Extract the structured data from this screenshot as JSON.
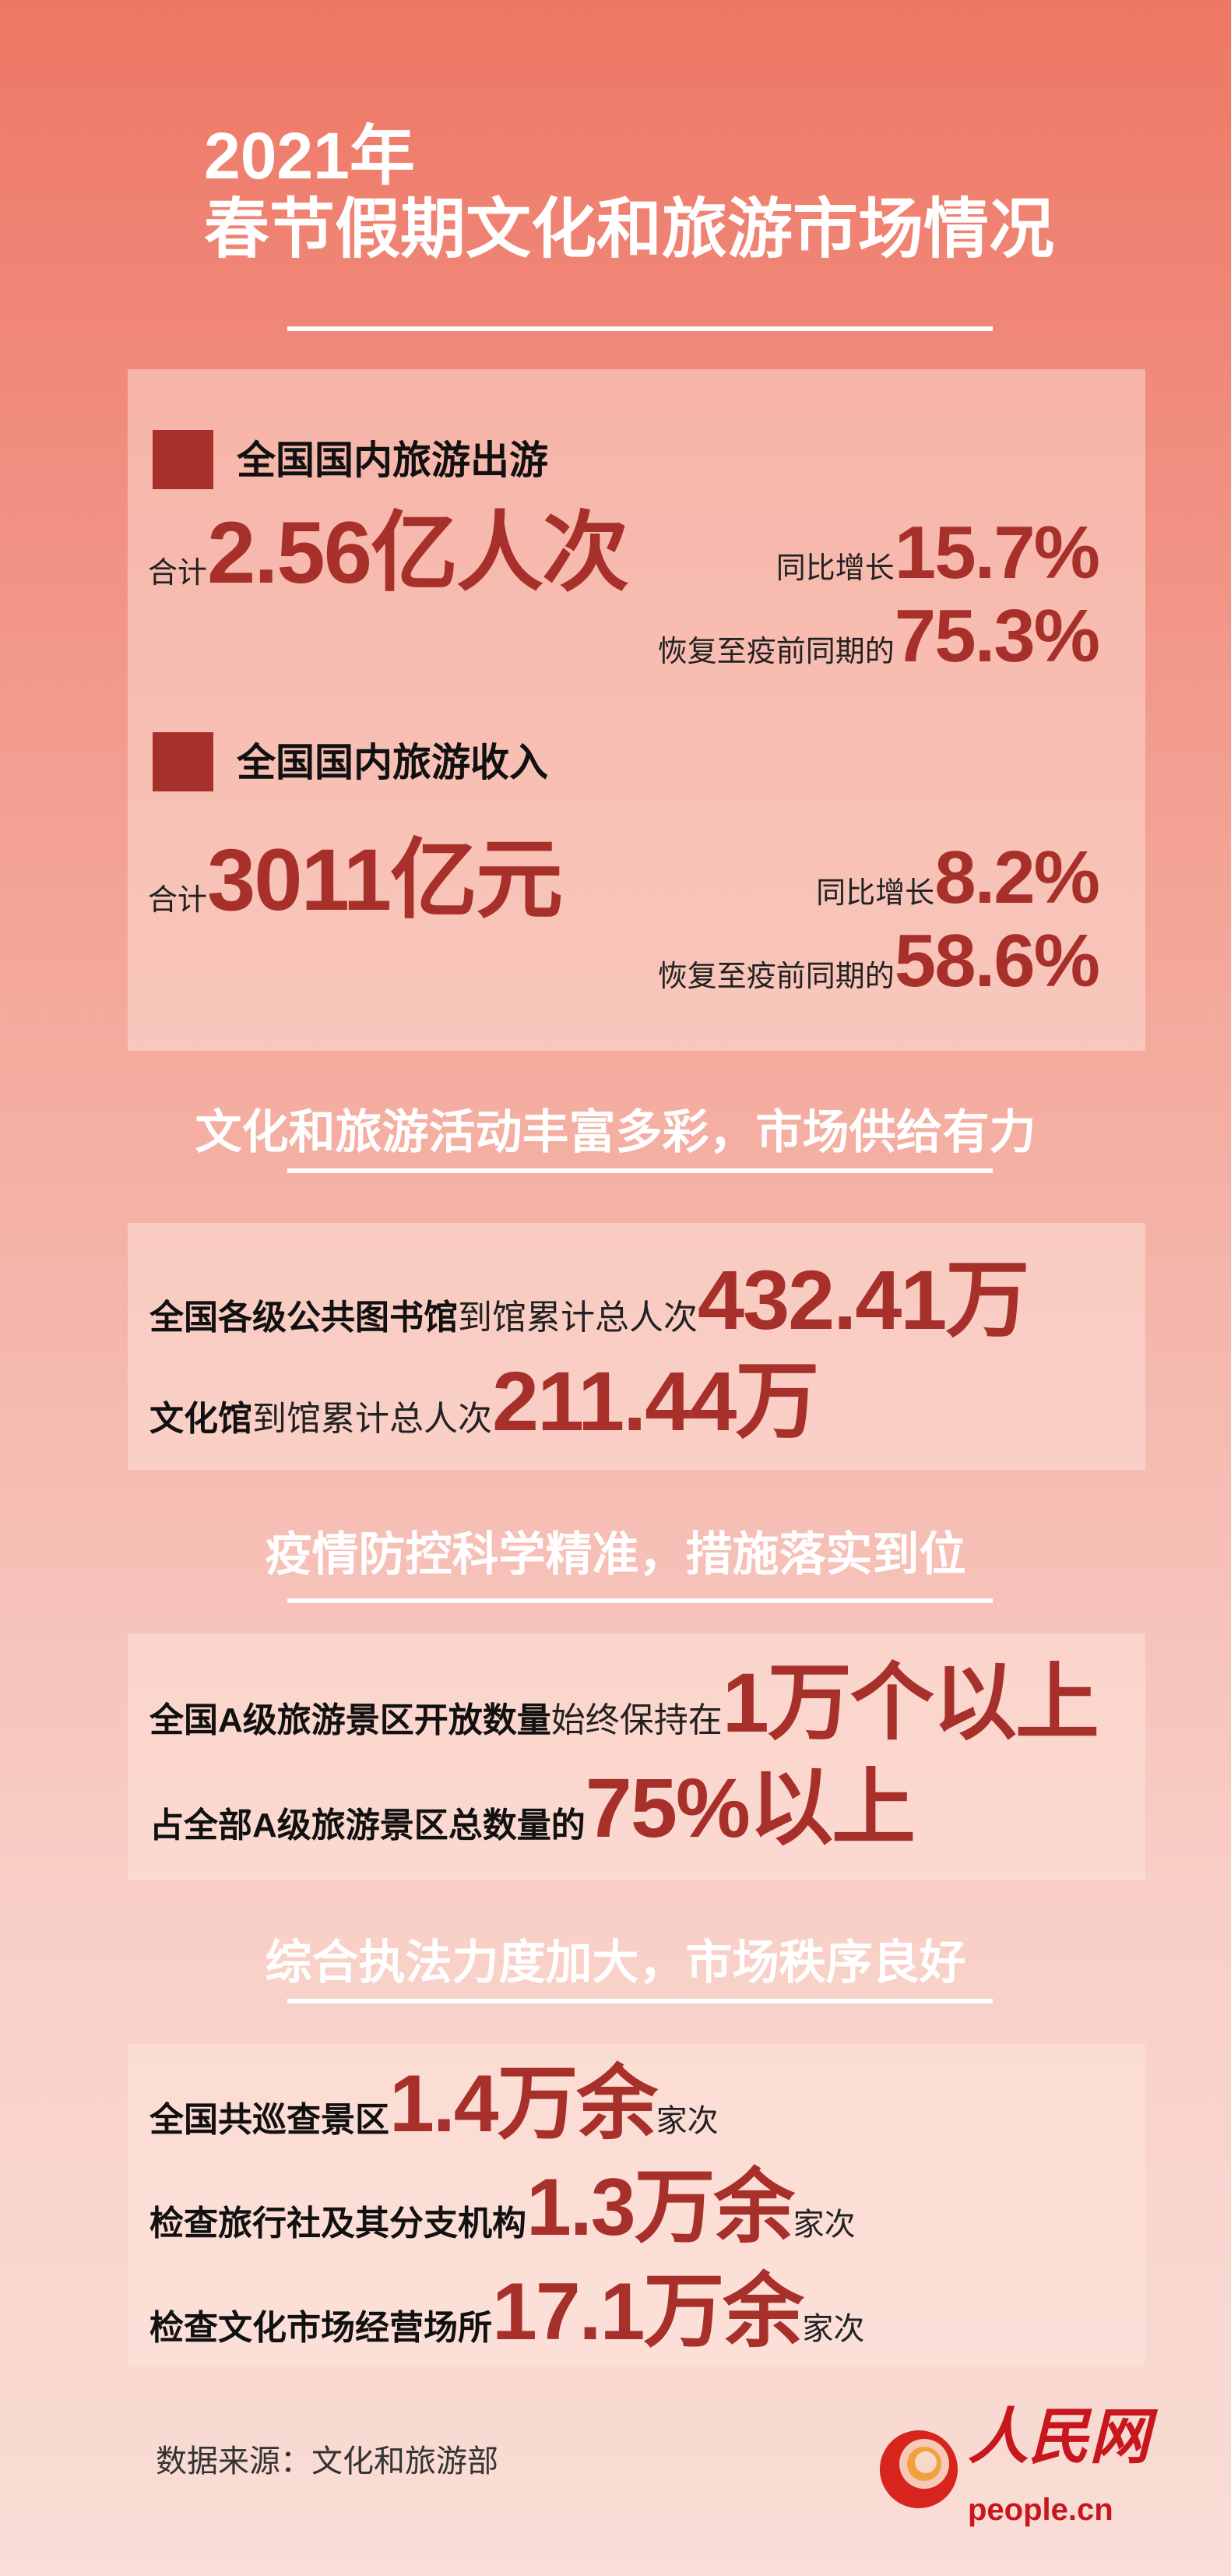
{
  "title": {
    "line1": "2021年",
    "line2": "春节假期文化和旅游市场情况"
  },
  "box1": {
    "trips": {
      "heading": "全国国内旅游出游",
      "total_label": "合计",
      "total_value": "2.56亿人次",
      "yoy_label": "同比增长",
      "yoy_value": "15.7%",
      "recover_label": "恢复至疫前同期的",
      "recover_value": "75.3%"
    },
    "revenue": {
      "heading": "全国国内旅游收入",
      "total_label": "合计",
      "total_value": "3011亿元",
      "yoy_label": "同比增长",
      "yoy_value": "8.2%",
      "recover_label": "恢复至疫前同期的",
      "recover_value": "58.6%"
    }
  },
  "section2": {
    "heading": "文化和旅游活动丰富多彩，市场供给有力",
    "rows": [
      {
        "bold": "全国各级公共图书馆",
        "plain": "到馆累计总人次",
        "value": "432.41万"
      },
      {
        "bold": "文化馆",
        "plain": "到馆累计总人次",
        "value": "211.44万"
      }
    ]
  },
  "section3": {
    "heading": "疫情防控科学精准，措施落实到位",
    "rows": [
      {
        "bold": "全国A级旅游景区开放数量",
        "plain": "始终保持在",
        "value": "1万个以上"
      },
      {
        "bold": "占全部A级旅游景区总数量的",
        "plain": "",
        "value": "75%以上"
      }
    ]
  },
  "section4": {
    "heading": "综合执法力度加大，市场秩序良好",
    "rows": [
      {
        "label": "全国共巡查景区",
        "value": "1.4万余",
        "unit": "家次"
      },
      {
        "label": "检查旅行社及其分支机构",
        "value": "1.3万余",
        "unit": "家次"
      },
      {
        "label": "检查文化市场经营场所",
        "value": "17.1万余",
        "unit": "家次"
      }
    ]
  },
  "footer": {
    "source": "数据来源：文化和旅游部",
    "logo_text": "人民网",
    "logo_domain": "people.cn"
  },
  "colors": {
    "accent": "#a8302b",
    "background_top": "#ee7764",
    "background_bottom": "#f9ddd6"
  }
}
